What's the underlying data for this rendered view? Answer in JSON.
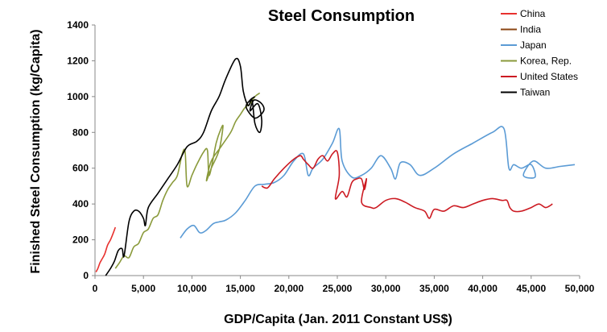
{
  "chart_data": {
    "type": "line",
    "title": "Steel Consumption",
    "xlabel": "GDP/Capita (Jan. 2011 Constant US$)",
    "ylabel": "Finished Steel Consumption (kg/Capita)",
    "xlim": [
      0,
      50000
    ],
    "ylim": [
      0,
      1400
    ],
    "x_ticks": [
      0,
      5000,
      10000,
      15000,
      20000,
      25000,
      30000,
      35000,
      40000,
      45000,
      50000
    ],
    "x_tick_labels": [
      "0",
      "5,000",
      "10,000",
      "15,000",
      "20,000",
      "25,000",
      "30,000",
      "35,000",
      "40,000",
      "45,000",
      "50,000"
    ],
    "y_ticks": [
      0,
      200,
      400,
      600,
      800,
      1000,
      1200,
      1400
    ],
    "y_tick_labels": [
      "0",
      "200",
      "400",
      "600",
      "800",
      "1000",
      "1200",
      "1400"
    ],
    "grid": false,
    "legend_position": "top-right",
    "series": [
      {
        "name": "China",
        "color": "#e8312e",
        "points": [
          [
            100,
            20
          ],
          [
            300,
            40
          ],
          [
            500,
            70
          ],
          [
            700,
            90
          ],
          [
            1000,
            120
          ],
          [
            1300,
            170
          ],
          [
            1600,
            200
          ],
          [
            1900,
            240
          ],
          [
            2100,
            270
          ]
        ]
      },
      {
        "name": "India",
        "color": "#8b4513",
        "points": []
      },
      {
        "name": "Japan",
        "color": "#5b9bd5",
        "points": [
          [
            8800,
            210
          ],
          [
            9500,
            260
          ],
          [
            10200,
            280
          ],
          [
            10800,
            240
          ],
          [
            11400,
            250
          ],
          [
            12200,
            290
          ],
          [
            12800,
            300
          ],
          [
            13500,
            310
          ],
          [
            14500,
            350
          ],
          [
            15500,
            420
          ],
          [
            16500,
            500
          ],
          [
            17500,
            510
          ],
          [
            18500,
            520
          ],
          [
            19500,
            560
          ],
          [
            20500,
            640
          ],
          [
            21500,
            680
          ],
          [
            22000,
            560
          ],
          [
            22500,
            600
          ],
          [
            23500,
            650
          ],
          [
            24500,
            740
          ],
          [
            25200,
            820
          ],
          [
            25500,
            640
          ],
          [
            26500,
            550
          ],
          [
            27500,
            560
          ],
          [
            28500,
            600
          ],
          [
            29500,
            670
          ],
          [
            30500,
            600
          ],
          [
            31000,
            540
          ],
          [
            31500,
            630
          ],
          [
            32500,
            620
          ],
          [
            33500,
            560
          ],
          [
            35000,
            600
          ],
          [
            37000,
            680
          ],
          [
            39000,
            740
          ],
          [
            41000,
            800
          ],
          [
            42200,
            820
          ],
          [
            42700,
            600
          ],
          [
            43200,
            620
          ],
          [
            44000,
            600
          ],
          [
            45000,
            620
          ],
          [
            45400,
            550
          ],
          [
            44200,
            560
          ],
          [
            45200,
            640
          ],
          [
            46500,
            600
          ],
          [
            48000,
            610
          ],
          [
            49500,
            620
          ]
        ]
      },
      {
        "name": "Korea, Rep.",
        "color": "#8a9a3b",
        "points": [
          [
            2100,
            40
          ],
          [
            2500,
            70
          ],
          [
            3000,
            110
          ],
          [
            3500,
            100
          ],
          [
            4000,
            160
          ],
          [
            4500,
            180
          ],
          [
            5000,
            240
          ],
          [
            5500,
            260
          ],
          [
            6000,
            320
          ],
          [
            6500,
            340
          ],
          [
            7000,
            420
          ],
          [
            7500,
            480
          ],
          [
            8000,
            520
          ],
          [
            8500,
            560
          ],
          [
            9000,
            680
          ],
          [
            9300,
            690
          ],
          [
            9500,
            500
          ],
          [
            10000,
            560
          ],
          [
            10500,
            620
          ],
          [
            11200,
            690
          ],
          [
            11600,
            700
          ],
          [
            11800,
            560
          ],
          [
            12500,
            740
          ],
          [
            13000,
            820
          ],
          [
            13200,
            830
          ],
          [
            12800,
            700
          ],
          [
            12000,
            600
          ],
          [
            11500,
            530
          ],
          [
            12000,
            640
          ],
          [
            13000,
            720
          ],
          [
            14000,
            800
          ],
          [
            14500,
            860
          ],
          [
            15000,
            900
          ],
          [
            15500,
            940
          ],
          [
            16000,
            960
          ],
          [
            16500,
            1000
          ],
          [
            17000,
            1020
          ]
        ]
      },
      {
        "name": "United States",
        "color": "#cc1a22",
        "points": [
          [
            17200,
            500
          ],
          [
            17800,
            490
          ],
          [
            18500,
            540
          ],
          [
            19500,
            600
          ],
          [
            20500,
            650
          ],
          [
            21200,
            670
          ],
          [
            21500,
            650
          ],
          [
            22000,
            620
          ],
          [
            22500,
            600
          ],
          [
            23000,
            650
          ],
          [
            23500,
            670
          ],
          [
            24000,
            640
          ],
          [
            24500,
            680
          ],
          [
            25000,
            690
          ],
          [
            25200,
            560
          ],
          [
            24800,
            430
          ],
          [
            25500,
            470
          ],
          [
            26000,
            440
          ],
          [
            26500,
            520
          ],
          [
            27000,
            540
          ],
          [
            27500,
            540
          ],
          [
            27800,
            480
          ],
          [
            28000,
            540
          ],
          [
            27500,
            410
          ],
          [
            28500,
            380
          ],
          [
            29000,
            380
          ],
          [
            30000,
            420
          ],
          [
            31000,
            430
          ],
          [
            32000,
            410
          ],
          [
            33000,
            380
          ],
          [
            34000,
            360
          ],
          [
            34500,
            320
          ],
          [
            35000,
            370
          ],
          [
            36000,
            360
          ],
          [
            37000,
            390
          ],
          [
            38000,
            380
          ],
          [
            39000,
            400
          ],
          [
            40000,
            420
          ],
          [
            41000,
            430
          ],
          [
            42000,
            420
          ],
          [
            42500,
            420
          ],
          [
            42800,
            380
          ],
          [
            43200,
            360
          ],
          [
            44000,
            360
          ],
          [
            45000,
            380
          ],
          [
            45800,
            400
          ],
          [
            46500,
            380
          ],
          [
            47200,
            400
          ]
        ]
      },
      {
        "name": "Taiwan",
        "color": "#000000",
        "points": [
          [
            1100,
            0
          ],
          [
            1600,
            40
          ],
          [
            2000,
            80
          ],
          [
            2400,
            140
          ],
          [
            2800,
            150
          ],
          [
            3000,
            110
          ],
          [
            3500,
            300
          ],
          [
            4000,
            360
          ],
          [
            4500,
            360
          ],
          [
            5000,
            320
          ],
          [
            5200,
            280
          ],
          [
            5500,
            380
          ],
          [
            6500,
            460
          ],
          [
            7500,
            540
          ],
          [
            8500,
            620
          ],
          [
            9500,
            720
          ],
          [
            10500,
            750
          ],
          [
            11200,
            800
          ],
          [
            12000,
            920
          ],
          [
            12800,
            1000
          ],
          [
            13500,
            1100
          ],
          [
            14500,
            1210
          ],
          [
            15000,
            1170
          ],
          [
            15300,
            1030
          ],
          [
            15800,
            950
          ],
          [
            16200,
            980
          ],
          [
            16500,
            850
          ],
          [
            17000,
            800
          ],
          [
            17200,
            870
          ],
          [
            16800,
            960
          ],
          [
            16000,
            920
          ],
          [
            16400,
            980
          ],
          [
            17200,
            960
          ],
          [
            17400,
            920
          ],
          [
            16500,
            880
          ],
          [
            15600,
            940
          ],
          [
            16000,
            980
          ],
          [
            16500,
            1000
          ]
        ]
      }
    ]
  }
}
